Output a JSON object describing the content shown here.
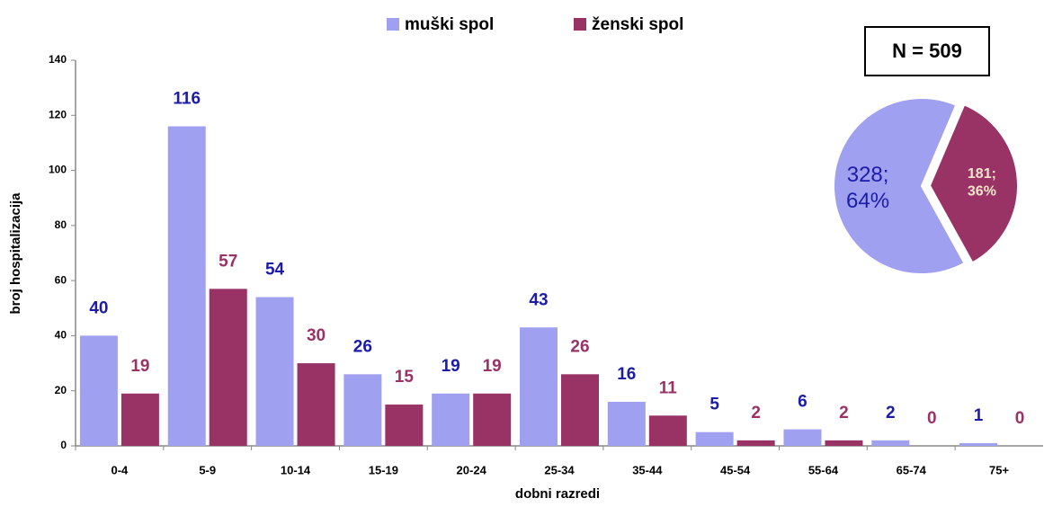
{
  "chart_data": [
    {
      "type": "bar",
      "y_label": "broj hospitalizacija",
      "x_label": "dobni razredi",
      "categories": [
        "0-4",
        "5-9",
        "10-14",
        "15-19",
        "20-24",
        "25-34",
        "35-44",
        "45-54",
        "55-64",
        "65-74",
        "75+"
      ],
      "series": [
        {
          "name": "muški spol",
          "color": "#a0a0f0",
          "label_color": "#1c1ca8",
          "values": [
            40,
            116,
            54,
            26,
            19,
            43,
            16,
            5,
            6,
            2,
            1
          ]
        },
        {
          "name": "ženski spol",
          "color": "#993366",
          "label_color": "#993366",
          "values": [
            19,
            57,
            30,
            15,
            19,
            26,
            11,
            2,
            2,
            0,
            0
          ]
        }
      ],
      "ylim": [
        0,
        140
      ],
      "yticks": [
        0,
        20,
        40,
        60,
        80,
        100,
        120,
        140
      ],
      "legend": "top"
    },
    {
      "type": "pie",
      "title": "N = 509",
      "values": [
        328,
        181
      ],
      "value_labels": [
        "328;",
        "181;"
      ],
      "percents": [
        64,
        36
      ],
      "percent_labels": [
        "64%",
        "36%"
      ],
      "colors": [
        "#a0a0f0",
        "#993366"
      ],
      "label_colors": [
        "#1c1ca8",
        "#f4e4c8"
      ]
    }
  ]
}
